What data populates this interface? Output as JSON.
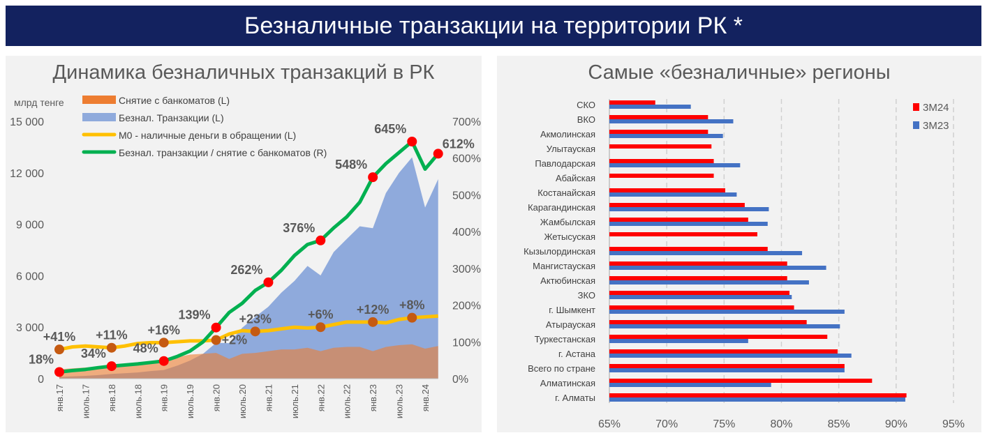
{
  "header": {
    "title": "Безналичные транзакции на территории РК *"
  },
  "chart_data": [
    {
      "type": "area+line",
      "title": "Динамика безналичных транзакций в РК",
      "ylabel_left": "млрд тенге",
      "ylim_left": [
        0,
        15000
      ],
      "yticks_left": [
        "0",
        "3 000",
        "6 000",
        "9 000",
        "12 000",
        "15 000"
      ],
      "ylim_right": [
        0,
        700
      ],
      "yticks_right": [
        "0%",
        "100%",
        "200%",
        "300%",
        "400%",
        "500%",
        "600%",
        "700%"
      ],
      "xticks": [
        "янв.17",
        "июль.17",
        "янв.18",
        "июль.18",
        "янв.19",
        "июль.19",
        "янв.20",
        "июль.20",
        "янв.21",
        "июль.21",
        "янв.22",
        "июль.22",
        "янв.23",
        "июль.23",
        "янв.24"
      ],
      "legend_position": "top-left",
      "x": [
        "2017-01",
        "2017-04",
        "2017-07",
        "2017-10",
        "2018-01",
        "2018-04",
        "2018-07",
        "2018-10",
        "2019-01",
        "2019-04",
        "2019-07",
        "2019-10",
        "2020-01",
        "2020-04",
        "2020-07",
        "2020-10",
        "2021-01",
        "2021-04",
        "2021-07",
        "2021-10",
        "2022-01",
        "2022-04",
        "2022-07",
        "2022-10",
        "2023-01",
        "2023-04",
        "2023-07",
        "2023-10",
        "2024-01",
        "2024-04"
      ],
      "series": [
        {
          "name": "Снятие с банкоматов (L)",
          "kind": "area",
          "axis": "left",
          "color": "#ed7d31",
          "values": [
            550,
            600,
            650,
            700,
            800,
            850,
            900,
            1000,
            1050,
            1250,
            1400,
            1450,
            1500,
            1150,
            1450,
            1500,
            1600,
            1700,
            1700,
            1800,
            1600,
            1800,
            1850,
            1850,
            1600,
            1850,
            1950,
            2000,
            1750,
            1900
          ]
        },
        {
          "name": "Безнал. Транзакции (L)",
          "kind": "area",
          "axis": "left",
          "color": "#8faadc",
          "values": [
            99,
            132,
            163,
            210,
            272,
            315,
            360,
            440,
            504,
            750,
            1050,
            1450,
            2085,
            2070,
            2970,
            3600,
            4190,
            5015,
            5695,
            6570,
            6016,
            7380,
            8140,
            8880,
            8770,
            10820,
            11990,
            12900,
            9975,
            11630
          ]
        },
        {
          "name": "М0 - наличные деньги в обращении (L)",
          "kind": "line",
          "axis": "left",
          "color": "#ffc000",
          "values": [
            1700,
            1850,
            1900,
            1850,
            1800,
            1900,
            2050,
            2100,
            2100,
            2150,
            2200,
            2200,
            2250,
            2600,
            2800,
            2750,
            2800,
            2900,
            3000,
            2950,
            3000,
            3150,
            3300,
            3300,
            3300,
            3250,
            3450,
            3550,
            3600,
            3650
          ]
        },
        {
          "name": "Безнал. транзакции / снятие с банкоматов (R)",
          "kind": "line",
          "axis": "right",
          "color": "#00b050",
          "values": [
            18,
            22,
            25,
            30,
            34,
            37,
            40,
            44,
            48,
            60,
            75,
            100,
            139,
            180,
            205,
            240,
            262,
            295,
            335,
            365,
            376,
            410,
            440,
            480,
            548,
            585,
            615,
            645,
            570,
            612
          ]
        }
      ],
      "annotations_ratio": [
        {
          "x": "2017-01",
          "label": "18%"
        },
        {
          "x": "2018-01",
          "label": "34%"
        },
        {
          "x": "2019-01",
          "label": "48%"
        },
        {
          "x": "2020-01",
          "label": "139%"
        },
        {
          "x": "2021-01",
          "label": "262%"
        },
        {
          "x": "2022-01",
          "label": "376%"
        },
        {
          "x": "2023-01",
          "label": "548%"
        },
        {
          "x": "2023-10",
          "label": "645%"
        },
        {
          "x": "2024-04",
          "label": "612%"
        }
      ],
      "annotations_m0": [
        {
          "x": "2017-01",
          "label": "+41%"
        },
        {
          "x": "2018-01",
          "label": "+11%"
        },
        {
          "x": "2019-01",
          "label": "+16%"
        },
        {
          "x": "2020-01",
          "label": "+2%"
        },
        {
          "x": "2020-10",
          "label": "+23%"
        },
        {
          "x": "2022-01",
          "label": "+6%"
        },
        {
          "x": "2023-01",
          "label": "+12%"
        },
        {
          "x": "2023-10",
          "label": "+8%"
        }
      ]
    },
    {
      "type": "bar",
      "orientation": "horizontal",
      "title": "Самые «безналичные» регионы",
      "xlim": [
        65,
        95
      ],
      "xticks": [
        "65%",
        "70%",
        "75%",
        "80%",
        "85%",
        "90%",
        "95%"
      ],
      "legend_position": "top-right",
      "categories": [
        "СКО",
        "ВКО",
        "Акмолинская",
        "Улытауская",
        "Павлодарская",
        "Абайская",
        "Костанайская",
        "Карагандинская",
        "Жамбылская",
        "Жетысуская",
        "Кызылординская",
        "Мангистауская",
        "Актюбинская",
        "ЗКО",
        "г. Шымкент",
        "Атырауская",
        "Туркестанская",
        "г. Астана",
        "Всего по стране",
        "Алматинская",
        "г. Алматы"
      ],
      "series": [
        {
          "name": "3М24",
          "color": "#ff0000",
          "values": [
            69.0,
            73.6,
            73.6,
            73.9,
            74.1,
            74.1,
            75.1,
            76.8,
            77.1,
            77.9,
            78.8,
            80.5,
            80.5,
            80.7,
            81.1,
            82.2,
            84.0,
            84.9,
            85.5,
            87.9,
            90.9
          ]
        },
        {
          "name": "3М23",
          "color": "#4472c4",
          "values": [
            72.1,
            75.8,
            74.9,
            null,
            76.4,
            null,
            76.1,
            78.9,
            78.8,
            null,
            81.8,
            83.9,
            82.4,
            80.9,
            85.5,
            85.1,
            77.1,
            86.1,
            85.5,
            79.1,
            90.8
          ]
        }
      ]
    }
  ]
}
